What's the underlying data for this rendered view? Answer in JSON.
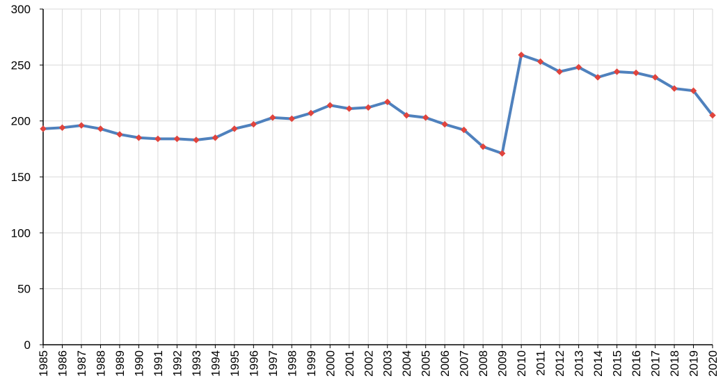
{
  "chart_data": {
    "type": "line",
    "title": "",
    "xlabel": "",
    "ylabel": "",
    "ylim": [
      0,
      300
    ],
    "y_ticks": [
      0,
      50,
      100,
      150,
      200,
      250,
      300
    ],
    "grid": true,
    "legend": "none",
    "categories": [
      "1985",
      "1986",
      "1987",
      "1988",
      "1989",
      "1990",
      "1991",
      "1992",
      "1993",
      "1994",
      "1995",
      "1996",
      "1997",
      "1998",
      "1999",
      "2000",
      "2001",
      "2002",
      "2003",
      "2004",
      "2005",
      "2006",
      "2007",
      "2008",
      "2009",
      "2010",
      "2011",
      "2012",
      "2013",
      "2014",
      "2015",
      "2016",
      "2017",
      "2018",
      "2019",
      "2020"
    ],
    "series": [
      {
        "values": [
          193,
          194,
          196,
          193,
          188,
          185,
          184,
          184,
          183,
          185,
          193,
          197,
          203,
          202,
          207,
          214,
          211,
          212,
          217,
          205,
          203,
          197,
          192,
          177,
          171,
          259,
          253,
          244,
          248,
          239,
          244,
          243,
          239,
          229,
          227,
          205
        ]
      }
    ],
    "colors": {
      "line": "#4f81bd",
      "marker": "#e0443d",
      "grid": "#d9d9d9",
      "axis": "#000000"
    }
  }
}
